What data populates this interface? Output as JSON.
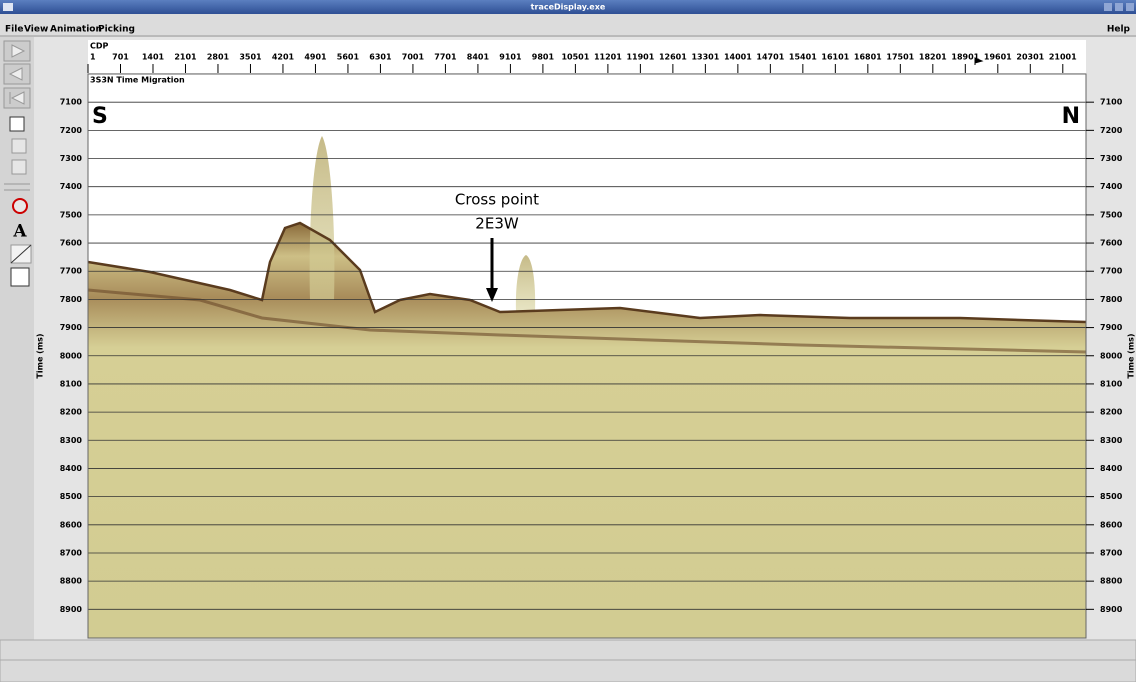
{
  "window": {
    "title": "traceDisplay.exe"
  },
  "menu": {
    "items": [
      "File",
      "View",
      "Animation",
      "Picking"
    ],
    "help": "Help"
  },
  "plot": {
    "section_title": "3S3N Time Migration",
    "x_axis": {
      "label": "CDP",
      "lim": [
        1,
        21501
      ],
      "ticks": [
        1,
        701,
        1401,
        2101,
        2801,
        3501,
        4201,
        4901,
        5601,
        6301,
        7001,
        7701,
        8401,
        9101,
        9801,
        10501,
        11201,
        11901,
        12601,
        13301,
        14001,
        14701,
        15401,
        16101,
        16801,
        17501,
        18201,
        18901,
        19601,
        20301,
        21001
      ]
    },
    "y_axis": {
      "label": "Time (ms)",
      "lim": [
        7000,
        9000
      ],
      "ticks": [
        7100,
        7200,
        7300,
        7400,
        7500,
        7600,
        7700,
        7800,
        7900,
        8000,
        8100,
        8200,
        8300,
        8400,
        8500,
        8600,
        8700,
        8800,
        8900
      ]
    },
    "annotations": {
      "south": "S",
      "north": "N",
      "cross_point": [
        "Cross point",
        "2E3W"
      ]
    }
  }
}
